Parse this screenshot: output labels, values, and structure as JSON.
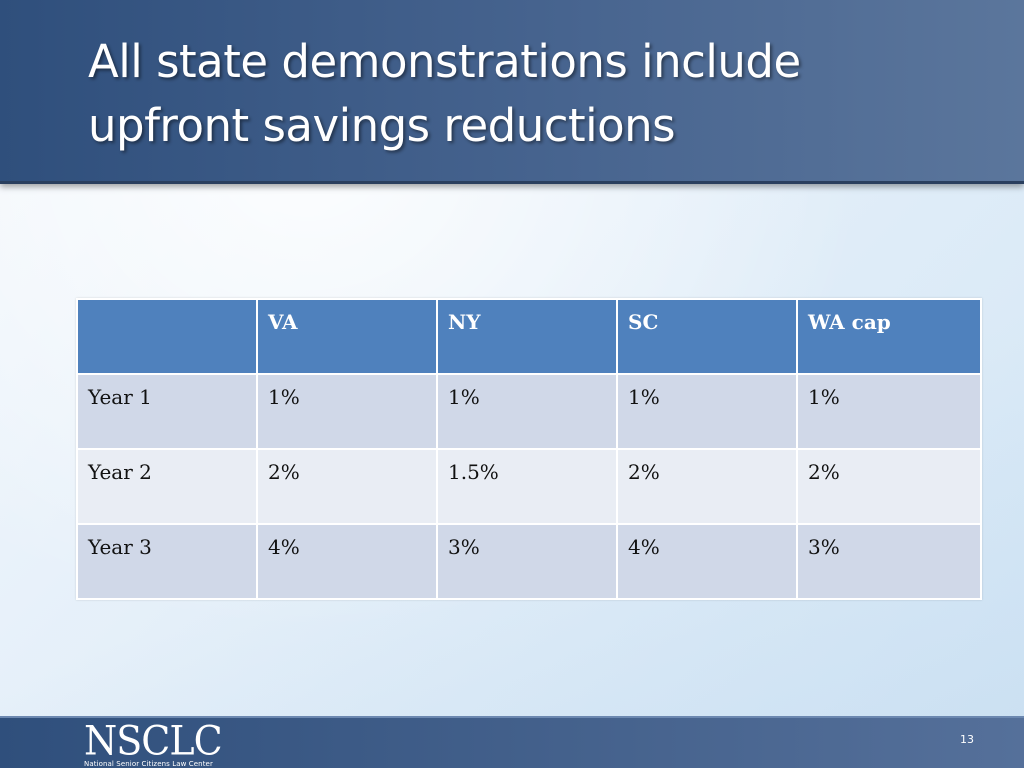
{
  "slide": {
    "title": "All state demonstrations include upfront savings reductions",
    "page_number": "13"
  },
  "table": {
    "columns": [
      "",
      "VA",
      "NY",
      "SC",
      "WA cap"
    ],
    "rows": [
      [
        "Year 1",
        "1%",
        "1%",
        "1%",
        "1%"
      ],
      [
        "Year 2",
        "2%",
        "1.5%",
        "2%",
        "2%"
      ],
      [
        "Year 3",
        "4%",
        "3%",
        "4%",
        "3%"
      ]
    ]
  },
  "footer": {
    "logo_text": "NSCLC",
    "logo_subtitle": "National Senior Citizens Law Center"
  },
  "colors": {
    "title_bar": "#47648f",
    "table_header": "#4f81bd",
    "row_odd": "#d0d8e8",
    "row_even": "#e9edf4"
  }
}
